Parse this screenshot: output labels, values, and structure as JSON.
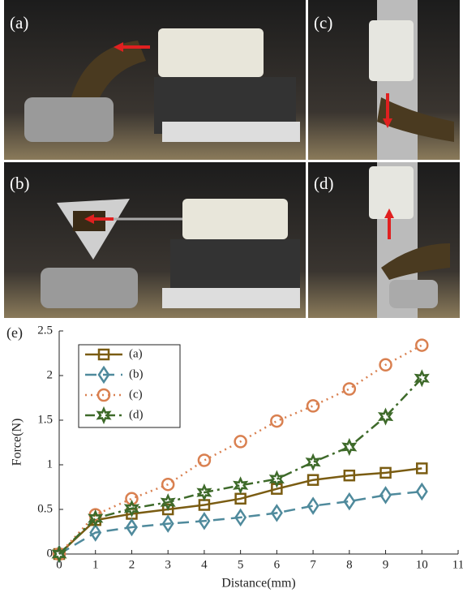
{
  "panels": [
    {
      "label": "(a)"
    },
    {
      "label": "(b)"
    },
    {
      "label": "(c)"
    },
    {
      "label": "(d)"
    }
  ],
  "chart_data": {
    "type": "line",
    "label": "(e)",
    "x_label": "Distance(mm)",
    "y_label": "Force(N)",
    "x": [
      0,
      1,
      2,
      3,
      4,
      5,
      6,
      7,
      8,
      9,
      10
    ],
    "series": [
      {
        "name": "(a)",
        "color": "#7a5c12",
        "dash": "solid",
        "marker": "square",
        "values": [
          0,
          0.38,
          0.45,
          0.5,
          0.55,
          0.62,
          0.73,
          0.83,
          0.88,
          0.91,
          0.96
        ]
      },
      {
        "name": "(b)",
        "color": "#4f8a9c",
        "dash": "dashed",
        "marker": "diamond",
        "values": [
          0,
          0.24,
          0.3,
          0.34,
          0.37,
          0.41,
          0.46,
          0.54,
          0.59,
          0.66,
          0.7
        ]
      },
      {
        "name": "(c)",
        "color": "#d98050",
        "dash": "dotted",
        "marker": "circle",
        "values": [
          0,
          0.44,
          0.62,
          0.78,
          1.05,
          1.26,
          1.49,
          1.66,
          1.85,
          2.12,
          2.34
        ]
      },
      {
        "name": "(d)",
        "color": "#3e6a2a",
        "dash": "dashdot",
        "marker": "star",
        "values": [
          0,
          0.4,
          0.51,
          0.58,
          0.69,
          0.77,
          0.84,
          1.03,
          1.2,
          1.54,
          1.97
        ]
      }
    ],
    "xlim": [
      0,
      11
    ],
    "xticks": [
      0,
      1,
      2,
      3,
      4,
      5,
      6,
      7,
      8,
      9,
      10,
      11
    ],
    "ylim": [
      0,
      2.5
    ],
    "yticks": [
      0,
      0.5,
      1,
      1.5,
      2,
      2.5
    ],
    "grid": false,
    "legend": "upper-left"
  }
}
